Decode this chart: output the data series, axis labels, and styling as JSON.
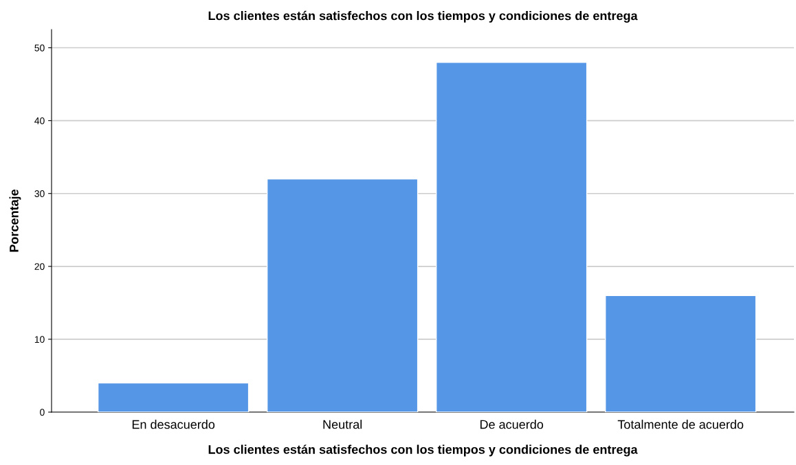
{
  "chart_data": {
    "type": "bar",
    "title": "Los clientes están satisfechos con los tiempos y condiciones de entrega",
    "xlabel": "Los clientes están satisfechos con los tiempos y condiciones de entrega",
    "ylabel": "Porcentaje",
    "categories": [
      "En desacuerdo",
      "Neutral",
      "De acuerdo",
      "Totalmente de acuerdo"
    ],
    "values": [
      4,
      32,
      48,
      16
    ],
    "color": "#5596e6",
    "ylim": [
      0,
      52.5
    ],
    "yticks": [
      0,
      10,
      20,
      30,
      40,
      50
    ],
    "grid": "y"
  }
}
